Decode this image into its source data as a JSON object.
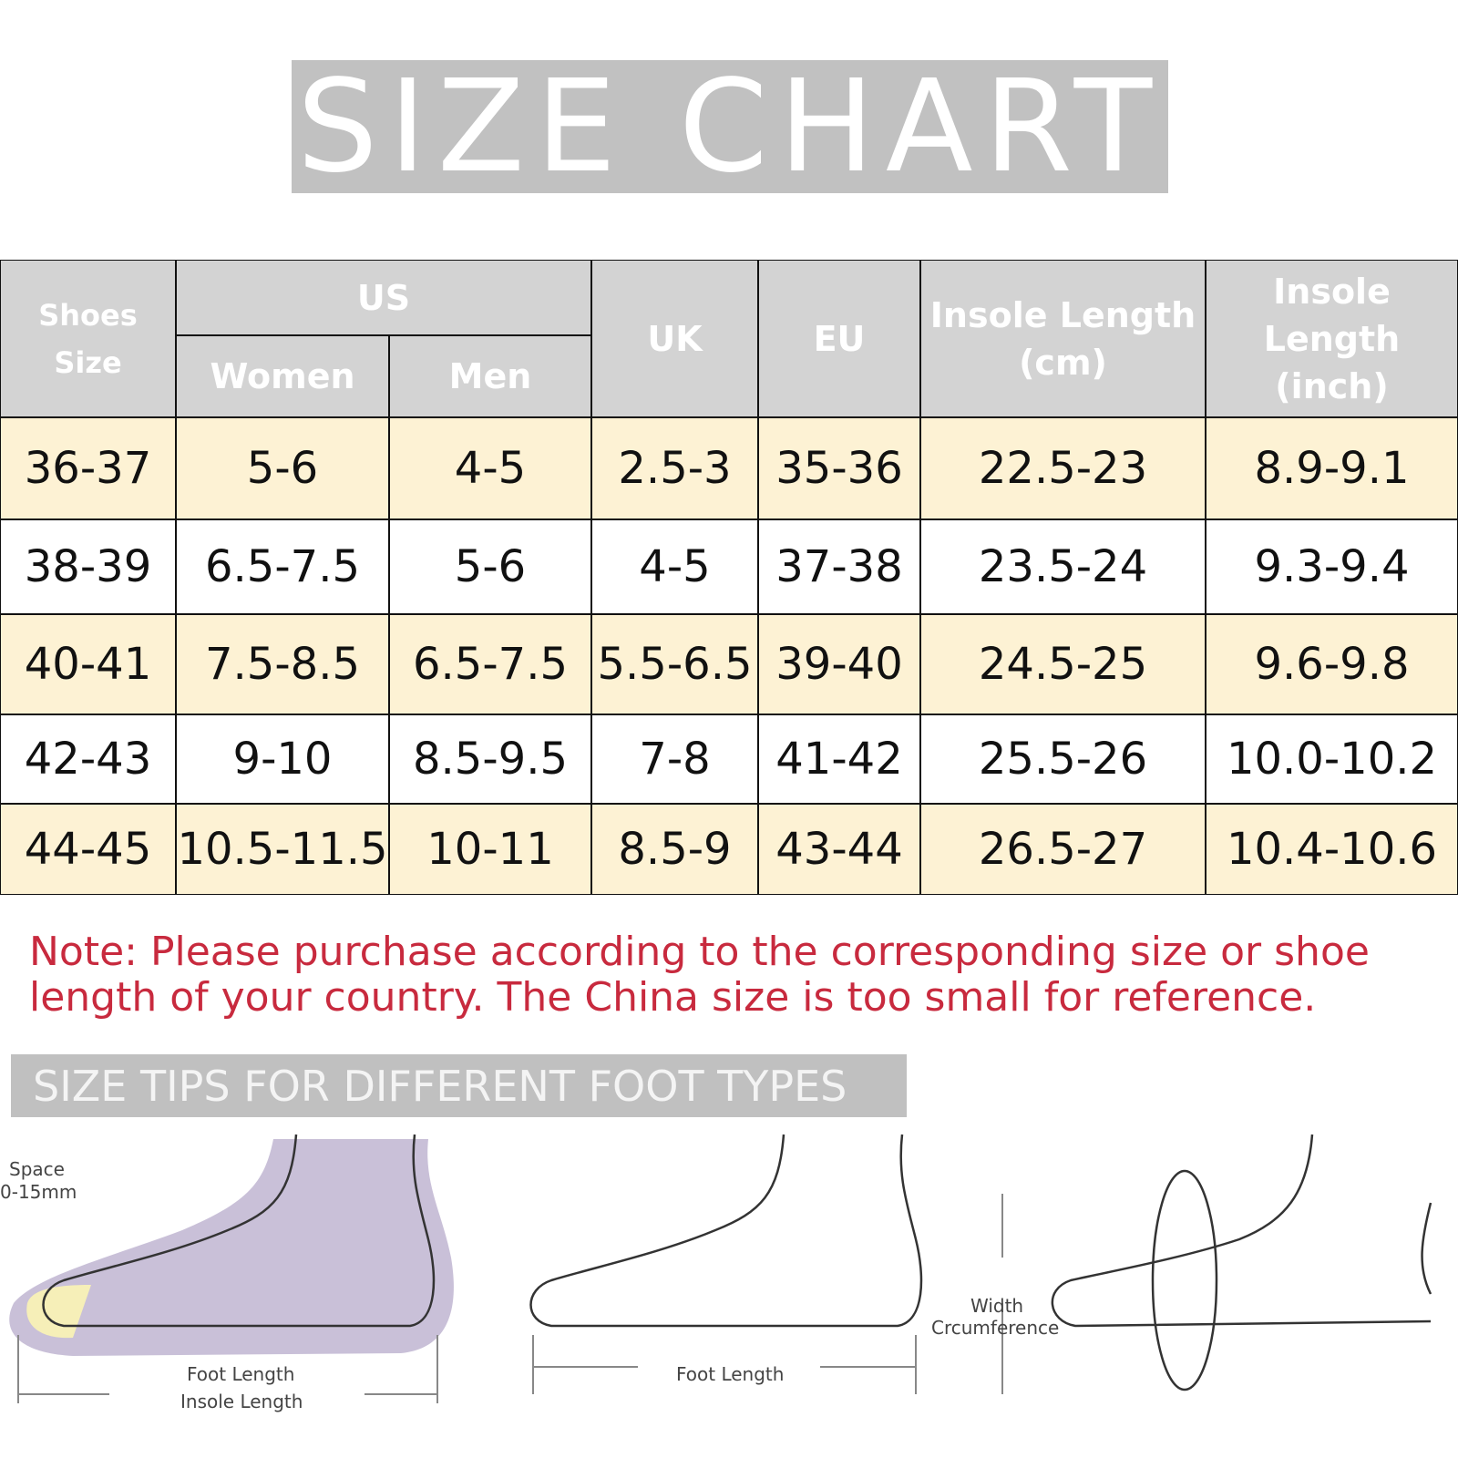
{
  "title": "SIZE CHART",
  "table": {
    "header": {
      "shoes_size": "Shoes Size",
      "us": "US",
      "women": "Women",
      "men": "Men",
      "uk": "UK",
      "eu": "EU",
      "insole_cm": [
        "Insole Length",
        "(cm)"
      ],
      "insole_inch": [
        "Insole Length",
        "(inch)"
      ]
    },
    "rows": [
      [
        "36-37",
        "5-6",
        "4-5",
        "2.5-3",
        "35-36",
        "22.5-23",
        "8.9-9.1"
      ],
      [
        "38-39",
        "6.5-7.5",
        "5-6",
        "4-5",
        "37-38",
        "23.5-24",
        "9.3-9.4"
      ],
      [
        "40-41",
        "7.5-8.5",
        "6.5-7.5",
        "5.5-6.5",
        "39-40",
        "24.5-25",
        "9.6-9.8"
      ],
      [
        "42-43",
        "9-10",
        "8.5-9.5",
        "7-8",
        "41-42",
        "25.5-26",
        "10.0-10.2"
      ],
      [
        "44-45",
        "10.5-11.5",
        "10-11",
        "8.5-9",
        "43-44",
        "26.5-27",
        "10.4-10.6"
      ]
    ]
  },
  "note": [
    "Note: Please purchase according to the corresponding size or shoe",
    "length of your country. The China size is too small for reference."
  ],
  "tips": {
    "title": "SIZE TIPS FOR DIFFERENT FOOT TYPES",
    "labels": [
      "Space",
      "0-15mm",
      "Foot Length",
      "Insole Length",
      "Foot Length",
      "Width",
      "Crcumference"
    ]
  }
}
